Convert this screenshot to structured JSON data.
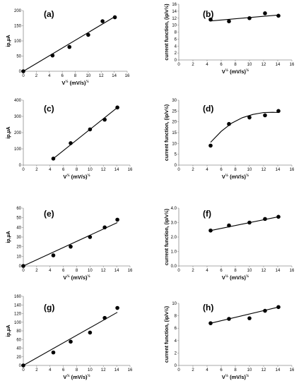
{
  "chart_data": [
    {
      "panel_label": "(a)",
      "type": "scatter",
      "xlabel": "V½ (mV/s)½",
      "ylabel": "ip,µA",
      "xlim": [
        0,
        16
      ],
      "xticks": [
        0,
        2,
        4,
        6,
        8,
        10,
        12,
        14,
        16
      ],
      "ylim": [
        0,
        200
      ],
      "yticks": [
        0,
        50,
        100,
        150,
        200
      ],
      "x": [
        0,
        4.5,
        7.1,
        10,
        12.2,
        14.1
      ],
      "y": [
        0,
        52,
        80,
        120,
        165,
        178
      ],
      "fit": {
        "kind": "linear",
        "x": [
          0,
          14.1
        ],
        "y": [
          0,
          180
        ]
      }
    },
    {
      "panel_label": "(b)",
      "type": "scatter",
      "xlabel": "V½ (mV/s)½",
      "ylabel": "current function, (ip/v½)",
      "xlim": [
        0,
        16
      ],
      "xticks": [
        0,
        2,
        4,
        6,
        8,
        10,
        12,
        14,
        16
      ],
      "ylim": [
        0,
        16
      ],
      "yticks": [
        0,
        2,
        4,
        6,
        8,
        10,
        12,
        14,
        16
      ],
      "x": [
        4.5,
        7.1,
        10,
        12.2,
        14.1
      ],
      "y": [
        11.6,
        11.1,
        12.0,
        13.4,
        12.7
      ],
      "fit": {
        "kind": "linear",
        "x": [
          4.5,
          14.1
        ],
        "y": [
          11.2,
          12.9
        ]
      }
    },
    {
      "panel_label": "(c)",
      "type": "scatter",
      "xlabel": "V½ (mV/s)½",
      "ylabel": "ip,µA",
      "xlim": [
        0,
        16
      ],
      "xticks": [
        0,
        2,
        4,
        6,
        8,
        10,
        12,
        14,
        16
      ],
      "ylim": [
        0,
        400
      ],
      "yticks": [
        0,
        100,
        200,
        300,
        400
      ],
      "x": [
        4.5,
        7.1,
        10,
        12.2,
        14.1
      ],
      "y": [
        40,
        135,
        220,
        280,
        355
      ],
      "fit": {
        "kind": "linear",
        "x": [
          4.5,
          14.1
        ],
        "y": [
          40,
          355
        ]
      }
    },
    {
      "panel_label": "(d)",
      "type": "scatter",
      "xlabel": "V½ (mV/s)½",
      "ylabel": "current function, (ip/v½)",
      "xlim": [
        0,
        16
      ],
      "xticks": [
        0,
        2,
        4,
        6,
        8,
        10,
        12,
        14,
        16
      ],
      "ylim": [
        0,
        30
      ],
      "yticks": [
        0,
        5,
        10,
        15,
        20,
        25,
        30
      ],
      "x": [
        4.5,
        7.1,
        10,
        12.2,
        14.1
      ],
      "y": [
        9,
        19,
        22,
        23,
        25
      ],
      "fit": {
        "kind": "quadratic",
        "x": [
          4.5,
          6,
          7.5,
          9,
          10.5,
          12,
          13.3,
          14.1
        ],
        "y": [
          10.5,
          15.6,
          19.4,
          21.9,
          23.4,
          24.3,
          24.4,
          24.3
        ]
      }
    },
    {
      "panel_label": "(e)",
      "type": "scatter",
      "xlabel": "V½ (mV/s)½",
      "ylabel": "ip,µA",
      "xlim": [
        0,
        16
      ],
      "xticks": [
        0,
        2,
        4,
        6,
        8,
        10,
        12,
        14,
        16
      ],
      "ylim": [
        0,
        60
      ],
      "yticks": [
        0,
        10,
        20,
        30,
        40,
        50,
        60
      ],
      "x": [
        0,
        4.5,
        7.1,
        10,
        12.2,
        14.1
      ],
      "y": [
        0,
        11,
        20,
        30,
        40,
        48
      ],
      "fit": {
        "kind": "linear",
        "x": [
          0,
          14.1
        ],
        "y": [
          0,
          45
        ]
      }
    },
    {
      "panel_label": "(f)",
      "type": "scatter",
      "xlabel": "V½ (mV/s)½",
      "ylabel": "current function, (ip/v½)",
      "xlim": [
        0,
        16
      ],
      "xticks": [
        0,
        2,
        4,
        6,
        8,
        10,
        12,
        14,
        16
      ],
      "ylim": [
        0,
        4.0
      ],
      "yticks": [
        "0.0",
        "1.0",
        "2.0",
        "3.0",
        "4.0"
      ],
      "x": [
        4.5,
        7.1,
        10,
        12.2,
        14.1
      ],
      "y": [
        2.45,
        2.8,
        3.0,
        3.25,
        3.4
      ],
      "fit": {
        "kind": "linear",
        "x": [
          4.5,
          14.1
        ],
        "y": [
          2.45,
          3.4
        ]
      }
    },
    {
      "panel_label": "(g)",
      "type": "scatter",
      "xlabel": "V½ (mV/s)½",
      "ylabel": "ip,µA",
      "xlim": [
        0,
        16
      ],
      "xticks": [
        0,
        2,
        4,
        6,
        8,
        10,
        12,
        14,
        16
      ],
      "ylim": [
        0,
        160
      ],
      "yticks": [
        0,
        20,
        40,
        60,
        80,
        100,
        120,
        140,
        160
      ],
      "x": [
        0,
        4.5,
        7.1,
        10,
        12.2,
        14.1
      ],
      "y": [
        0,
        30,
        55,
        76,
        110,
        133
      ],
      "fit": {
        "kind": "linear",
        "x": [
          0,
          14.1
        ],
        "y": [
          0,
          123
        ]
      }
    },
    {
      "panel_label": "(h)",
      "type": "scatter",
      "xlabel": "V½ (mV/s)½",
      "ylabel": "current function, (ip/v½)",
      "xlim": [
        0,
        16
      ],
      "xticks": [
        0,
        2,
        4,
        6,
        8,
        10,
        12,
        14,
        16
      ],
      "ylim": [
        0,
        10
      ],
      "yticks": [
        0,
        2,
        4,
        6,
        8,
        10
      ],
      "x": [
        4.5,
        7.1,
        10,
        12.2,
        14.1
      ],
      "y": [
        6.8,
        7.5,
        7.6,
        8.8,
        9.4
      ],
      "fit": {
        "kind": "linear",
        "x": [
          4.5,
          14.1
        ],
        "y": [
          6.8,
          9.4
        ]
      }
    }
  ]
}
